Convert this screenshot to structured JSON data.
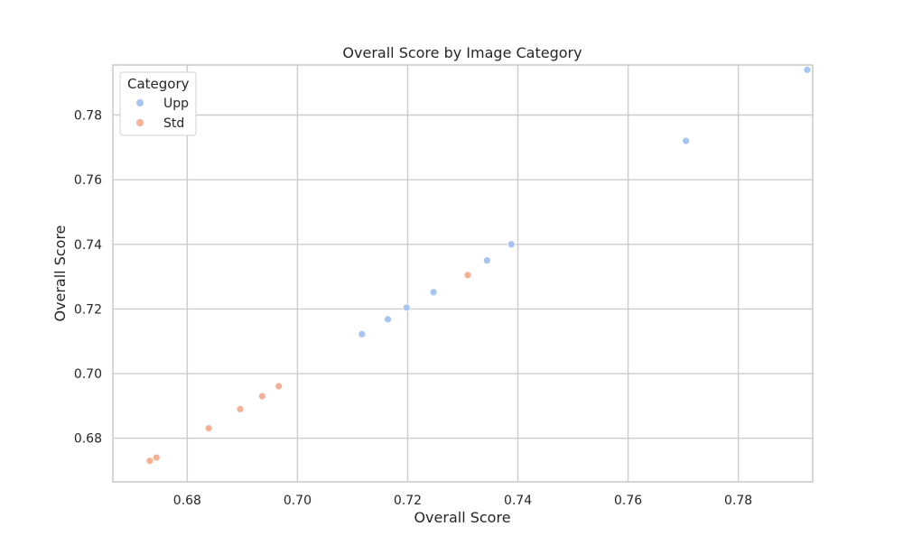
{
  "chart_data": {
    "type": "scatter",
    "title": "Overall Score by Image Category",
    "xlabel": "Overall Score",
    "ylabel": "Overall Score",
    "xlim": [
      0.6665,
      0.7935
    ],
    "ylim": [
      0.6665,
      0.7955
    ],
    "x_ticks": [
      0.68,
      0.7,
      0.72,
      0.74,
      0.76,
      0.78
    ],
    "x_tick_labels": [
      "0.68",
      "0.70",
      "0.72",
      "0.74",
      "0.76",
      "0.78"
    ],
    "y_ticks": [
      0.68,
      0.7,
      0.72,
      0.74,
      0.76,
      0.78
    ],
    "y_tick_labels": [
      "0.68",
      "0.70",
      "0.72",
      "0.74",
      "0.76",
      "0.78"
    ],
    "grid": true,
    "legend": {
      "title": "Category",
      "placement": "top-left"
    },
    "series": [
      {
        "name": "Upp",
        "color": "#a7c4f2",
        "points": [
          {
            "x": 0.7117,
            "y": 0.7122
          },
          {
            "x": 0.7164,
            "y": 0.7168
          },
          {
            "x": 0.7198,
            "y": 0.7204
          },
          {
            "x": 0.7247,
            "y": 0.7252
          },
          {
            "x": 0.7344,
            "y": 0.735
          },
          {
            "x": 0.7388,
            "y": 0.74
          },
          {
            "x": 0.7705,
            "y": 0.772
          },
          {
            "x": 0.7925,
            "y": 0.794
          }
        ]
      },
      {
        "name": "Std",
        "color": "#f4b196",
        "points": [
          {
            "x": 0.6732,
            "y": 0.673
          },
          {
            "x": 0.6744,
            "y": 0.674
          },
          {
            "x": 0.6839,
            "y": 0.6831
          },
          {
            "x": 0.6896,
            "y": 0.689
          },
          {
            "x": 0.6936,
            "y": 0.693
          },
          {
            "x": 0.6966,
            "y": 0.6961
          },
          {
            "x": 0.7309,
            "y": 0.7305
          }
        ]
      }
    ]
  }
}
